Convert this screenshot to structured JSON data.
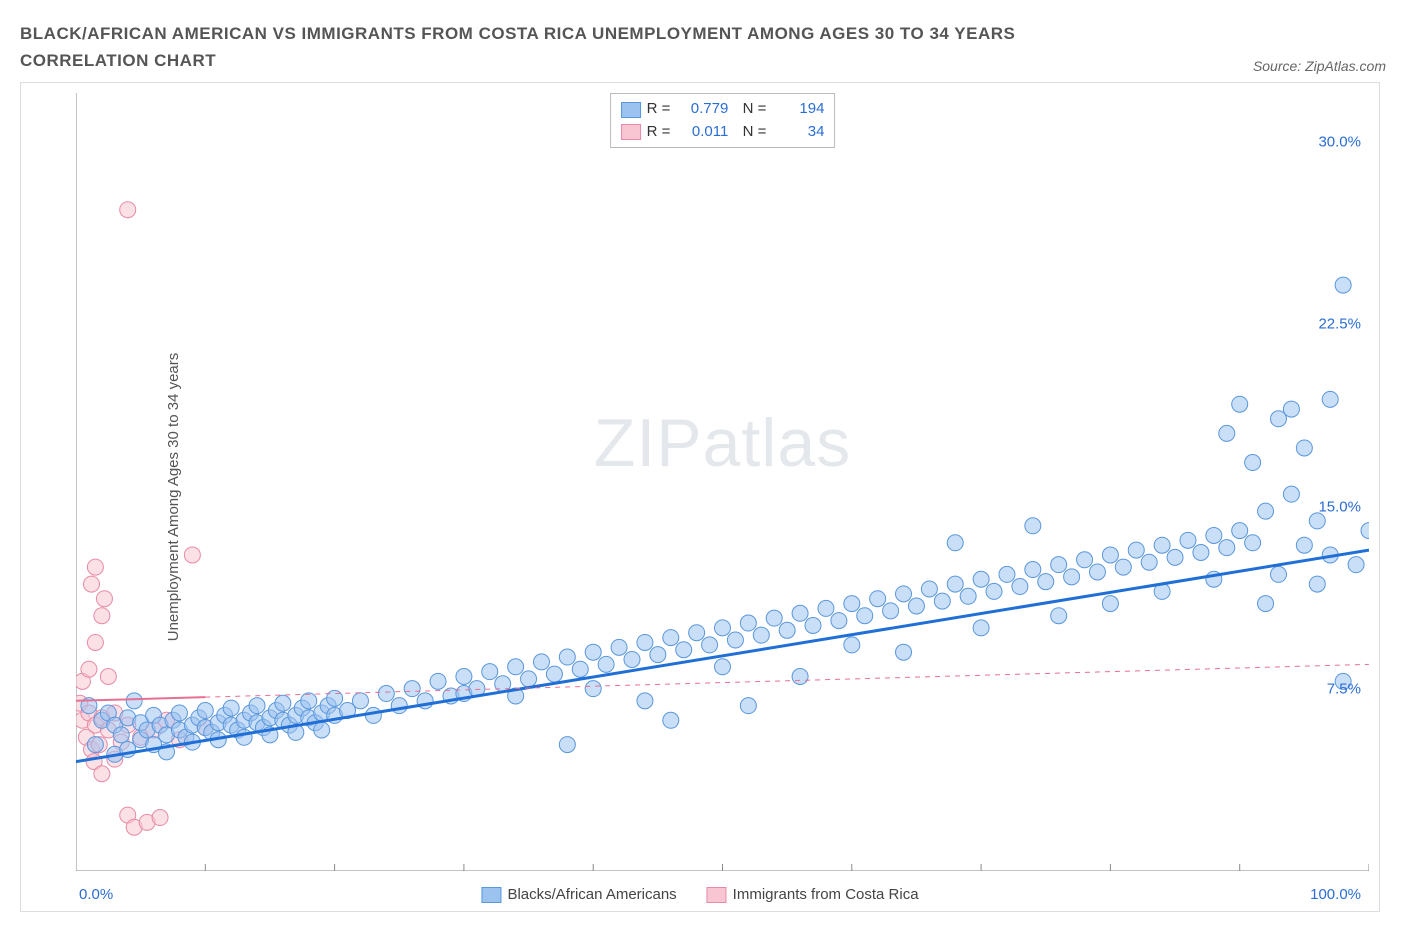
{
  "title": "BLACK/AFRICAN AMERICAN VS IMMIGRANTS FROM COSTA RICA UNEMPLOYMENT AMONG AGES 30 TO 34 YEARS CORRELATION CHART",
  "source": "Source: ZipAtlas.com",
  "watermark_a": "ZIP",
  "watermark_b": "atlas",
  "ylabel": "Unemployment Among Ages 30 to 34 years",
  "chart": {
    "type": "scatter",
    "xlim": [
      0,
      100
    ],
    "ylim": [
      0,
      32
    ],
    "xtick_step": 10,
    "yticks": [
      7.5,
      15.0,
      22.5,
      30.0
    ],
    "ytick_labels": [
      "7.5%",
      "15.0%",
      "22.5%",
      "30.0%"
    ],
    "xaxis_min_label": "0.0%",
    "xaxis_max_label": "100.0%",
    "background_color": "#ffffff",
    "point_radius": 8,
    "point_opacity": 0.55,
    "series": [
      {
        "name": "Blacks/African Americans",
        "color_fill": "#9cc3f0",
        "color_stroke": "#5a97dd",
        "trend_color": "#1f6fd6",
        "trend_width": 3,
        "trend_dash": "none",
        "trend_y_at_x0": 4.5,
        "trend_y_at_x100": 13.2,
        "R": "0.779",
        "N": "194",
        "points": [
          [
            1,
            6.8
          ],
          [
            1.5,
            5.2
          ],
          [
            2,
            6.2
          ],
          [
            2.5,
            6.5
          ],
          [
            3,
            4.8
          ],
          [
            3,
            6.0
          ],
          [
            3.5,
            5.6
          ],
          [
            4,
            5.0
          ],
          [
            4,
            6.3
          ],
          [
            4.5,
            7.0
          ],
          [
            5,
            5.4
          ],
          [
            5,
            6.1
          ],
          [
            5.5,
            5.8
          ],
          [
            6,
            5.2
          ],
          [
            6,
            6.4
          ],
          [
            6.5,
            6.0
          ],
          [
            7,
            5.6
          ],
          [
            7,
            4.9
          ],
          [
            7.5,
            6.2
          ],
          [
            8,
            5.8
          ],
          [
            8,
            6.5
          ],
          [
            8.5,
            5.5
          ],
          [
            9,
            6.0
          ],
          [
            9,
            5.3
          ],
          [
            9.5,
            6.3
          ],
          [
            10,
            5.9
          ],
          [
            10,
            6.6
          ],
          [
            10.5,
            5.7
          ],
          [
            11,
            6.1
          ],
          [
            11,
            5.4
          ],
          [
            11.5,
            6.4
          ],
          [
            12,
            6.0
          ],
          [
            12,
            6.7
          ],
          [
            12.5,
            5.8
          ],
          [
            13,
            6.2
          ],
          [
            13,
            5.5
          ],
          [
            13.5,
            6.5
          ],
          [
            14,
            6.1
          ],
          [
            14,
            6.8
          ],
          [
            14.5,
            5.9
          ],
          [
            15,
            6.3
          ],
          [
            15,
            5.6
          ],
          [
            15.5,
            6.6
          ],
          [
            16,
            6.2
          ],
          [
            16,
            6.9
          ],
          [
            16.5,
            6.0
          ],
          [
            17,
            6.4
          ],
          [
            17,
            5.7
          ],
          [
            17.5,
            6.7
          ],
          [
            18,
            6.3
          ],
          [
            18,
            7.0
          ],
          [
            18.5,
            6.1
          ],
          [
            19,
            6.5
          ],
          [
            19,
            5.8
          ],
          [
            19.5,
            6.8
          ],
          [
            20,
            6.4
          ],
          [
            20,
            7.1
          ],
          [
            21,
            6.6
          ],
          [
            22,
            7.0
          ],
          [
            23,
            6.4
          ],
          [
            24,
            7.3
          ],
          [
            25,
            6.8
          ],
          [
            26,
            7.5
          ],
          [
            27,
            7.0
          ],
          [
            28,
            7.8
          ],
          [
            29,
            7.2
          ],
          [
            30,
            8.0
          ],
          [
            30,
            7.3
          ],
          [
            31,
            7.5
          ],
          [
            32,
            8.2
          ],
          [
            33,
            7.7
          ],
          [
            34,
            8.4
          ],
          [
            34,
            7.2
          ],
          [
            35,
            7.9
          ],
          [
            36,
            8.6
          ],
          [
            37,
            8.1
          ],
          [
            38,
            8.8
          ],
          [
            38,
            5.2
          ],
          [
            39,
            8.3
          ],
          [
            40,
            9.0
          ],
          [
            40,
            7.5
          ],
          [
            41,
            8.5
          ],
          [
            42,
            9.2
          ],
          [
            43,
            8.7
          ],
          [
            44,
            9.4
          ],
          [
            44,
            7.0
          ],
          [
            45,
            8.9
          ],
          [
            46,
            9.6
          ],
          [
            46,
            6.2
          ],
          [
            47,
            9.1
          ],
          [
            48,
            9.8
          ],
          [
            49,
            9.3
          ],
          [
            50,
            10.0
          ],
          [
            50,
            8.4
          ],
          [
            51,
            9.5
          ],
          [
            52,
            10.2
          ],
          [
            52,
            6.8
          ],
          [
            53,
            9.7
          ],
          [
            54,
            10.4
          ],
          [
            55,
            9.9
          ],
          [
            56,
            10.6
          ],
          [
            56,
            8.0
          ],
          [
            57,
            10.1
          ],
          [
            58,
            10.8
          ],
          [
            59,
            10.3
          ],
          [
            60,
            11.0
          ],
          [
            60,
            9.3
          ],
          [
            61,
            10.5
          ],
          [
            62,
            11.2
          ],
          [
            63,
            10.7
          ],
          [
            64,
            11.4
          ],
          [
            64,
            9.0
          ],
          [
            65,
            10.9
          ],
          [
            66,
            11.6
          ],
          [
            67,
            11.1
          ],
          [
            68,
            11.8
          ],
          [
            68,
            13.5
          ],
          [
            69,
            11.3
          ],
          [
            70,
            12.0
          ],
          [
            70,
            10.0
          ],
          [
            71,
            11.5
          ],
          [
            72,
            12.2
          ],
          [
            73,
            11.7
          ],
          [
            74,
            12.4
          ],
          [
            74,
            14.2
          ],
          [
            75,
            11.9
          ],
          [
            76,
            12.6
          ],
          [
            76,
            10.5
          ],
          [
            77,
            12.1
          ],
          [
            78,
            12.8
          ],
          [
            79,
            12.3
          ],
          [
            80,
            13.0
          ],
          [
            80,
            11.0
          ],
          [
            81,
            12.5
          ],
          [
            82,
            13.2
          ],
          [
            83,
            12.7
          ],
          [
            84,
            13.4
          ],
          [
            84,
            11.5
          ],
          [
            85,
            12.9
          ],
          [
            86,
            13.6
          ],
          [
            87,
            13.1
          ],
          [
            88,
            13.8
          ],
          [
            88,
            12.0
          ],
          [
            89,
            13.3
          ],
          [
            89,
            18.0
          ],
          [
            90,
            14.0
          ],
          [
            90,
            19.2
          ],
          [
            91,
            13.5
          ],
          [
            91,
            16.8
          ],
          [
            92,
            11.0
          ],
          [
            92,
            14.8
          ],
          [
            93,
            18.6
          ],
          [
            93,
            12.2
          ],
          [
            94,
            15.5
          ],
          [
            94,
            19.0
          ],
          [
            95,
            13.4
          ],
          [
            95,
            17.4
          ],
          [
            96,
            11.8
          ],
          [
            96,
            14.4
          ],
          [
            97,
            19.4
          ],
          [
            97,
            13.0
          ],
          [
            98,
            7.8
          ],
          [
            98,
            24.1
          ],
          [
            99,
            12.6
          ],
          [
            100,
            14.0
          ]
        ]
      },
      {
        "name": "Immigrants from Costa Rica",
        "color_fill": "#f7c6d2",
        "color_stroke": "#e98aa6",
        "trend_color": "#e76f93",
        "trend_width": 2,
        "trend_dash": "5,5",
        "trend_solid_until_x": 10,
        "trend_y_at_x0": 7.0,
        "trend_y_at_x100": 8.5,
        "R": "0.011",
        "N": "34",
        "points": [
          [
            0.3,
            6.9
          ],
          [
            0.5,
            6.2
          ],
          [
            0.5,
            7.8
          ],
          [
            0.8,
            5.5
          ],
          [
            1.0,
            6.5
          ],
          [
            1.0,
            8.3
          ],
          [
            1.2,
            5.0
          ],
          [
            1.2,
            11.8
          ],
          [
            1.4,
            4.5
          ],
          [
            1.5,
            6.0
          ],
          [
            1.5,
            9.4
          ],
          [
            1.5,
            12.5
          ],
          [
            1.8,
            5.2
          ],
          [
            2.0,
            6.3
          ],
          [
            2.0,
            10.5
          ],
          [
            2.0,
            4.0
          ],
          [
            2.2,
            11.2
          ],
          [
            2.5,
            5.8
          ],
          [
            2.5,
            8.0
          ],
          [
            3.0,
            4.6
          ],
          [
            3.0,
            6.5
          ],
          [
            3.5,
            5.3
          ],
          [
            4.0,
            6.0
          ],
          [
            4.0,
            2.3
          ],
          [
            4.5,
            1.8
          ],
          [
            5.0,
            5.5
          ],
          [
            5.5,
            2.0
          ],
          [
            6.0,
            5.8
          ],
          [
            6.5,
            2.2
          ],
          [
            7.0,
            6.2
          ],
          [
            8.0,
            5.4
          ],
          [
            9.0,
            13.0
          ],
          [
            10.0,
            5.9
          ],
          [
            4.0,
            27.2
          ]
        ]
      }
    ]
  },
  "legend_bottom": [
    {
      "label": "Blacks/African Americans",
      "fill": "#9cc3f0",
      "stroke": "#5a97dd"
    },
    {
      "label": "Immigrants from Costa Rica",
      "fill": "#f7c6d2",
      "stroke": "#e98aa6"
    }
  ]
}
